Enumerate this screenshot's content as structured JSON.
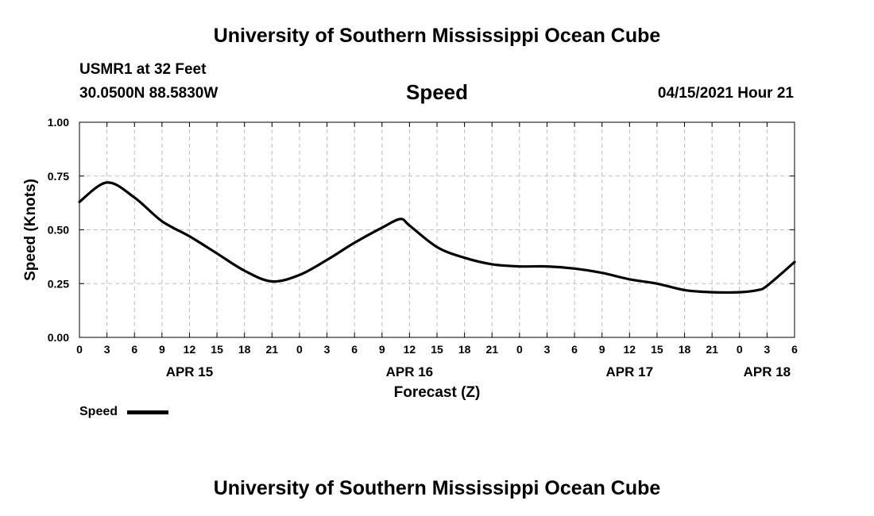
{
  "header": {
    "title": "University of Southern Mississippi Ocean Cube",
    "station": "USMR1 at 32 Feet",
    "position": "30.0500N  88.5830W",
    "datetime": "04/15/2021 Hour 21"
  },
  "footer": {
    "title": "University of Southern Mississippi Ocean Cube"
  },
  "chart_data": {
    "type": "line",
    "title": "Speed",
    "xlabel": "Forecast (Z)",
    "ylabel": "Speed (Knots)",
    "ylim": [
      0,
      1
    ],
    "yticks": [
      "0.00",
      "0.25",
      "0.50",
      "0.75",
      "1.00"
    ],
    "xlim": [
      "2021-04-15 00Z",
      "2021-04-18 06Z"
    ],
    "xticks": [
      "0",
      "3",
      "6",
      "9",
      "12",
      "15",
      "18",
      "21",
      "0",
      "3",
      "6",
      "9",
      "12",
      "15",
      "18",
      "21",
      "0",
      "3",
      "6",
      "9",
      "12",
      "15",
      "18",
      "21",
      "0",
      "3",
      "6"
    ],
    "day_labels": [
      {
        "label": "APR 15",
        "at_hour": "2021-04-15 12Z"
      },
      {
        "label": "APR 16",
        "at_hour": "2021-04-16 12Z"
      },
      {
        "label": "APR 17",
        "at_hour": "2021-04-17 12Z"
      },
      {
        "label": "APR 18",
        "at_hour": "2021-04-18 03Z"
      }
    ],
    "grid": true,
    "legend_position": "bottom-left",
    "series": [
      {
        "name": "Speed",
        "color": "#000000",
        "x": [
          "2021-04-15 00Z",
          "2021-04-15 03Z",
          "2021-04-15 06Z",
          "2021-04-15 09Z",
          "2021-04-15 12Z",
          "2021-04-15 15Z",
          "2021-04-15 18Z",
          "2021-04-15 21Z",
          "2021-04-16 00Z",
          "2021-04-16 03Z",
          "2021-04-16 06Z",
          "2021-04-16 09Z",
          "2021-04-16 11Z",
          "2021-04-16 12Z",
          "2021-04-16 15Z",
          "2021-04-16 18Z",
          "2021-04-16 21Z",
          "2021-04-17 00Z",
          "2021-04-17 03Z",
          "2021-04-17 06Z",
          "2021-04-17 09Z",
          "2021-04-17 12Z",
          "2021-04-17 15Z",
          "2021-04-17 18Z",
          "2021-04-17 21Z",
          "2021-04-18 00Z",
          "2021-04-18 02Z",
          "2021-04-18 03Z",
          "2021-04-18 06Z"
        ],
        "values": [
          0.63,
          0.72,
          0.65,
          0.54,
          0.47,
          0.39,
          0.31,
          0.26,
          0.29,
          0.36,
          0.44,
          0.51,
          0.55,
          0.52,
          0.42,
          0.37,
          0.34,
          0.33,
          0.33,
          0.32,
          0.3,
          0.27,
          0.25,
          0.22,
          0.21,
          0.21,
          0.22,
          0.24,
          0.35
        ]
      }
    ]
  }
}
